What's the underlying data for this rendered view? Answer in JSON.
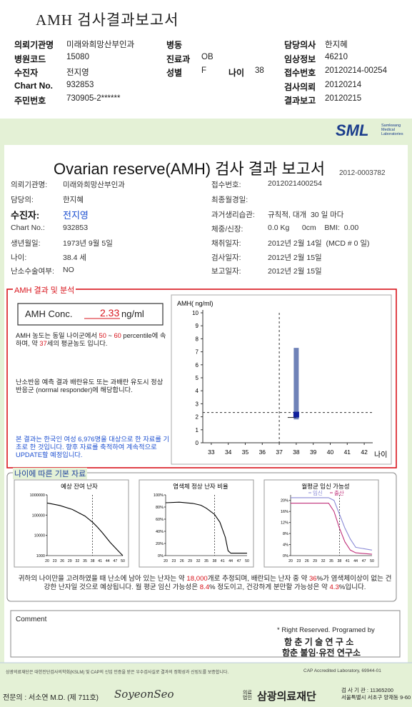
{
  "header": {
    "title": "AMH 검사결과보고서",
    "fields": [
      {
        "label": "의뢰기관명",
        "value": "미래와희망산부인과"
      },
      {
        "label": "병동"
      },
      {
        "label": "담당의사",
        "value": "한지혜"
      },
      {
        "label": "병원코드",
        "value": "15080"
      },
      {
        "label": "진료과",
        "value": "OB"
      },
      {
        "label": "임상정보",
        "value": "46210"
      },
      {
        "label": "수진자",
        "value": "전지영"
      },
      {
        "label": "성별",
        "value": "F"
      },
      {
        "label": "나이",
        "value": "38"
      },
      {
        "label": "접수번호",
        "value": "20120214-00254"
      },
      {
        "label": "Chart No.",
        "value": "932853"
      },
      {
        "label": "검사의뢰",
        "value": "20120214"
      },
      {
        "label": "주민번호",
        "value": "730905-2******"
      },
      {
        "label": "결과보고",
        "value": "20120215"
      }
    ]
  },
  "report": {
    "logo": "SML",
    "logo_sub": [
      "Samkwang",
      "Medical",
      "Laboratories"
    ],
    "title": "Ovarian reserve(AMH) 검사 결과 보고서",
    "number": "2012-0003782",
    "left": [
      {
        "label": "의뢰기관명:",
        "value": "미래와희망산부인과"
      },
      {
        "label": "담당의:",
        "value": "한지혜"
      },
      {
        "label": "수진자:",
        "value": "전지영"
      },
      {
        "label": "Chart No.:",
        "value": "932853"
      },
      {
        "label": "생년월일:",
        "value": "1973년 9월 5일"
      },
      {
        "label": "나이:",
        "value": "38.4 세"
      },
      {
        "label": "난소수술여부:",
        "value": "NO"
      }
    ],
    "right": [
      {
        "label": "접수번호:",
        "value": "2012021400254"
      },
      {
        "label": "최종월경일:"
      },
      {
        "label": "과거생리습관:",
        "value": "규칙적, 대개  30 일 마다"
      },
      {
        "label": "체중/신장:",
        "value": "0.0 Kg      0cm    BMI:  0.00"
      },
      {
        "label": "채취일자:",
        "value": "2012년 2월 14일  (MCD # 0 일)"
      },
      {
        "label": "검사일자:",
        "value": "2012년 2월 15일"
      },
      {
        "label": "보고일자:",
        "value": "2012년 2월 15일"
      }
    ]
  },
  "analysis": {
    "title": "AMH 결과 및 분석",
    "conc": {
      "label": "AMH Conc.",
      "value": 2.33,
      "unit": "ng/ml"
    },
    "p1": [
      "AMH 농도는 동일 나이군에서 ",
      "50",
      " ~ ",
      "60",
      " percentile에 속하며, 약 ",
      "37",
      "세의 평균농도 입니다."
    ],
    "p2": "난소반응 예측 결과 배란유도 또는 과배란 유도시 정상반응군 (normal responder)에 해당합니다.",
    "p3": "본 결과는 한국인 여성 6,976명을 대상으로 한 자료를 기초로 한 것입니다. 향후 자료를 축적하여 계속적으로 UPDATE할 예정입니다.",
    "chart": {
      "type": "range-bar",
      "ylabel": "AMH( ng/ml)",
      "xlabel": "나이",
      "xlim": [
        32.5,
        42.5
      ],
      "ylim": [
        0,
        10
      ],
      "xticks": [
        33,
        34,
        35,
        36,
        37,
        38,
        39,
        40,
        41,
        42
      ],
      "yticks": [
        0,
        1,
        2,
        3,
        4,
        5,
        6,
        7,
        8,
        9,
        10
      ],
      "bar": {
        "x": 38,
        "low": 1.8,
        "high": 7.3,
        "color": "#6f82b8"
      },
      "reference_x": 37,
      "marker_color": "#0f1f9c"
    }
  },
  "basic": {
    "title": "나이에 따른 기본 자료",
    "charts": [
      {
        "type": "line",
        "title": "예상 잔여 난자",
        "log": true,
        "xlim": [
          20,
          50
        ],
        "ylim": [
          1000,
          1000000
        ],
        "xticks": [
          20,
          23,
          26,
          29,
          32,
          35,
          38,
          41,
          44,
          47,
          50
        ],
        "yticks": [
          1000,
          10000,
          100000,
          1000000
        ],
        "reference_x": 38,
        "x": [
          20,
          25,
          30,
          35,
          38,
          40,
          42,
          45,
          48,
          50
        ],
        "series": [
          {
            "color": "#000000",
            "values": [
              400000,
              300000,
              190000,
              90000,
              45000,
              25000,
              13000,
              4500,
              1800,
              1000
            ]
          }
        ]
      },
      {
        "type": "line",
        "title": "염색체 정상 난자 비율",
        "xlim": [
          20,
          50
        ],
        "ylim": [
          0,
          100
        ],
        "xticks": [
          20,
          23,
          26,
          29,
          32,
          35,
          38,
          41,
          44,
          47,
          50
        ],
        "yticks": [
          {
            "value": 0,
            "label": "0%"
          },
          {
            "value": 20,
            "label": "20%"
          },
          {
            "value": 40,
            "label": "40%"
          },
          {
            "value": 60,
            "label": "60%"
          },
          {
            "value": 80,
            "label": "80%"
          },
          {
            "value": 100,
            "label": "100%"
          }
        ],
        "reference_x": 38,
        "x": [
          20,
          25,
          30,
          33,
          35,
          38,
          40,
          42,
          43,
          44,
          50
        ],
        "series": [
          {
            "color": "#000000",
            "values": [
              87,
              88,
              86,
              83,
              78,
              68,
              55,
              30,
              8,
              4,
              4
            ]
          }
        ]
      },
      {
        "type": "line",
        "title": "월평균 임신 가능성",
        "xlim": [
          20,
          50
        ],
        "ylim": [
          0,
          22
        ],
        "xticks": [
          20,
          23,
          26,
          29,
          32,
          35,
          38,
          41,
          44,
          47,
          50
        ],
        "yticks": [
          {
            "value": 0,
            "label": "0%"
          },
          {
            "value": 4,
            "label": "4%"
          },
          {
            "value": 8,
            "label": "8%"
          },
          {
            "value": 12,
            "label": "12%"
          },
          {
            "value": 16,
            "label": "16%"
          },
          {
            "value": 20,
            "label": "20%"
          }
        ],
        "reference_x": 38,
        "x": [
          20,
          30,
          34,
          36,
          38,
          40,
          42,
          44,
          50
        ],
        "series": [
          {
            "name": "임신",
            "color": "#8a8ad6",
            "values": [
              21,
              21,
              21,
              20,
              15,
              10,
              6,
              3,
              2
            ]
          },
          {
            "name": "출산",
            "color": "#c0307a",
            "values": [
              19,
              19,
              19,
              16,
              10,
              5,
              2,
              1,
              0.5
            ]
          }
        ]
      }
    ],
    "summary": [
      "귀하의 나이만을 고려하였을 때 난소에 남아 있는 난자는 약 ",
      "18,000",
      "개로 추정되며, 배란되는 난자 중 약 ",
      "36",
      "%가 염색체이상이 없는 건강한 난자일 것으로 예상됩니다. 월 평균 임신 가능성은 ",
      "8.4",
      "% 정도이고, 건강하게 분만할 가능성은 약 ",
      "4.3",
      "%입니다."
    ]
  },
  "comment": {
    "label": "Comment",
    "credits": [
      "* Right Reserved. Programed by",
      "함 춘 기 술 연 구 소",
      "함춘 불임·유전 연구소"
    ]
  },
  "footer": {
    "note": "상광의료재단은 대한진단검사의학회(KSLM) 및 CAP의 신임 인증을 받은 우수검사실로 결과의 정확성과 신빙도를 보증합니다.",
    "cap": "CAP Accredited Laboratory, 69944-01",
    "doctor": "전문의 : 서소연 M.D. (제 711호)",
    "signature": "SoyeonSeo",
    "org": "삼광의료재단",
    "org_prefix": "의료법인",
    "info": [
      "검 사 기 관 : 11365200",
      "서울특별시 서초구 양재동 9-60"
    ]
  }
}
